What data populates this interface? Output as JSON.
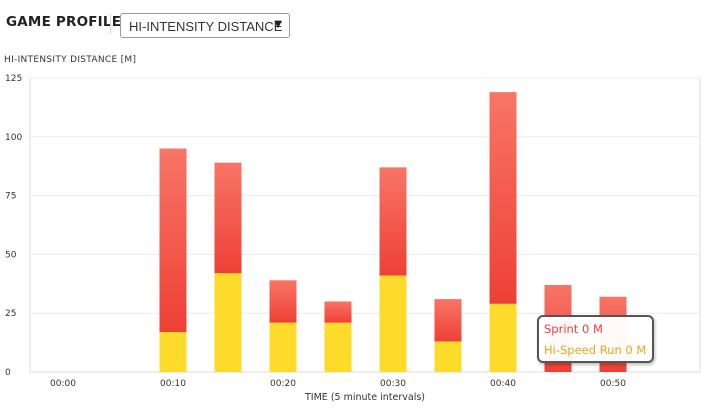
{
  "header": {
    "title": "GAME PROFILE",
    "selected_metric": "HI-INTENSITY DISTANCE",
    "dropdown_arrow": "▼"
  },
  "tooltip": {
    "sprint_label": "Sprint 0 M",
    "hsr_label": "Hi-Speed Run 0 M"
  },
  "colors": {
    "sprint_top": "#f87566",
    "sprint_bottom": "#ee4035",
    "hsr": "#fddb2a",
    "grid": "#ececec",
    "plot_border": "#dedede"
  },
  "chart_data": {
    "type": "bar",
    "stacked": true,
    "ylabel": "HI-INTENSITY DISTANCE [M]",
    "xlabel": "TIME (5 minute intervals)",
    "ylim": [
      0,
      125
    ],
    "yticks": [
      0,
      25,
      50,
      75,
      100,
      125
    ],
    "xticks": [
      "00:00",
      "00:10",
      "00:20",
      "00:30",
      "00:40",
      "00:50"
    ],
    "x": [
      10,
      15,
      20,
      25,
      30,
      35,
      40,
      45,
      50
    ],
    "x_domain": [
      0,
      55
    ],
    "grid": true,
    "series": [
      {
        "name": "Hi-Speed Run",
        "values": [
          17,
          42,
          21,
          21,
          41,
          13,
          29,
          0,
          0
        ]
      },
      {
        "name": "Sprint",
        "values": [
          78,
          47,
          18,
          9,
          46,
          18,
          90,
          37,
          32
        ]
      }
    ]
  }
}
